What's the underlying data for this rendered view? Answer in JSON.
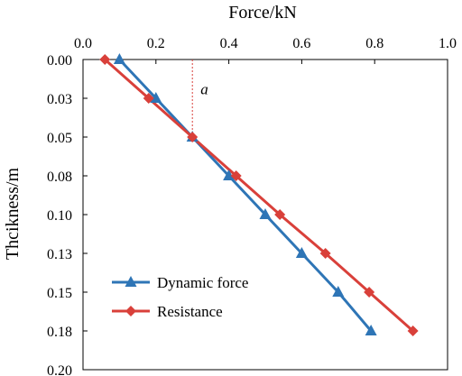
{
  "chart_data": {
    "type": "line",
    "title": "",
    "xlabel": "Force/kN",
    "ylabel": "Thcikness/m",
    "xlim": [
      0.0,
      1.0
    ],
    "ylim": [
      0.0,
      0.2
    ],
    "y_inverted": true,
    "x_axis_position": "top",
    "x_ticks": [
      "0.0",
      "0.2",
      "0.4",
      "0.6",
      "0.8",
      "1.0"
    ],
    "y_ticks": [
      "0.00",
      "0.03",
      "0.05",
      "0.08",
      "0.10",
      "0.13",
      "0.15",
      "0.18",
      "0.20"
    ],
    "grid": false,
    "legend_position": "bottom-left",
    "series": [
      {
        "name": "Dynamic force",
        "color": "#2E75B6",
        "marker": "triangle",
        "points": [
          [
            0.1,
            0.0
          ],
          [
            0.2,
            0.025
          ],
          [
            0.3,
            0.05
          ],
          [
            0.4,
            0.075
          ],
          [
            0.5,
            0.1
          ],
          [
            0.6,
            0.125
          ],
          [
            0.7,
            0.15
          ],
          [
            0.79,
            0.175
          ]
        ]
      },
      {
        "name": "Resistance",
        "color": "#D9403A",
        "marker": "diamond",
        "points": [
          [
            0.06,
            0.0
          ],
          [
            0.18,
            0.025
          ],
          [
            0.3,
            0.05
          ],
          [
            0.42,
            0.075
          ],
          [
            0.54,
            0.1
          ],
          [
            0.665,
            0.125
          ],
          [
            0.785,
            0.15
          ],
          [
            0.905,
            0.175
          ]
        ]
      }
    ],
    "annotation": {
      "text": "a",
      "x": 0.3,
      "y": 0.02
    },
    "reference_line": {
      "color": "#D9403A",
      "x": 0.3,
      "y_from": 0.0,
      "y_to": 0.05
    }
  }
}
